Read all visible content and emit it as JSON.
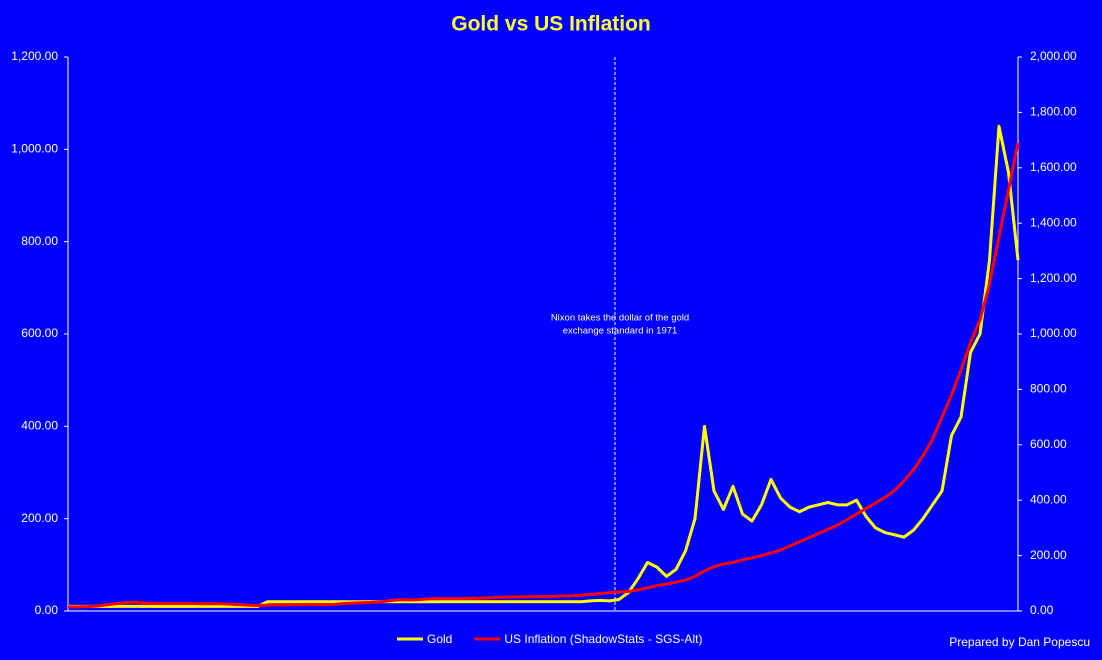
{
  "chart_data": {
    "type": "line",
    "title": "Gold vs US Inflation",
    "categories": [
      null,
      null,
      null,
      null,
      null,
      null,
      null,
      null,
      null,
      null,
      null,
      null,
      null,
      null,
      null,
      null,
      null,
      null,
      null,
      null,
      null,
      null,
      null,
      null,
      null,
      null,
      null,
      null,
      null,
      null,
      null,
      null,
      null,
      null,
      null,
      null,
      null,
      null,
      null,
      null,
      null,
      null,
      null,
      null,
      null,
      null,
      null,
      null,
      null,
      null,
      null,
      null,
      null,
      null,
      null,
      null,
      null,
      null,
      null,
      null,
      null,
      null,
      null,
      null,
      null,
      null,
      null,
      null,
      null,
      null,
      null,
      null,
      null,
      null,
      null,
      null,
      null,
      null,
      null,
      null,
      null,
      null,
      null,
      null,
      null,
      null,
      null,
      null,
      null,
      null,
      null,
      null,
      null,
      null,
      null,
      null,
      null,
      null,
      null,
      null,
      null
    ],
    "series": [
      {
        "name": "Gold",
        "color": "#ffff00",
        "values": [
          10,
          10,
          10,
          10,
          10,
          10,
          10,
          10,
          10,
          10,
          10,
          10,
          10,
          10,
          10,
          10,
          10,
          10,
          10,
          10,
          10,
          20,
          20,
          20,
          20,
          20,
          20,
          20,
          20,
          20,
          20,
          20,
          20,
          20,
          20,
          20,
          20,
          20,
          20,
          20,
          20,
          20,
          20,
          20,
          20,
          20,
          20,
          20,
          20,
          20,
          20,
          20,
          20,
          20,
          20,
          22,
          23,
          22,
          25,
          40,
          70,
          105,
          95,
          75,
          90,
          130,
          200,
          400,
          260,
          220,
          270,
          210,
          195,
          230,
          285,
          245,
          225,
          215,
          225,
          230,
          235,
          230,
          230,
          240,
          205,
          180,
          170,
          165,
          160,
          175,
          200,
          230,
          260,
          380,
          420,
          560,
          600,
          760,
          1050,
          950,
          760
        ]
      },
      {
        "name": "US Inflation (ShadowStats - SGS-Alt)",
        "color": "#ff0000",
        "axis": "y2",
        "values": [
          15,
          15,
          16,
          18,
          22,
          26,
          30,
          32,
          29,
          27,
          27,
          27,
          27,
          27,
          26,
          26,
          26,
          25,
          23,
          21,
          20,
          21,
          22,
          22,
          23,
          23,
          23,
          23,
          24,
          27,
          29,
          30,
          31,
          33,
          38,
          41,
          40,
          41,
          44,
          45,
          45,
          45,
          45,
          46,
          47,
          49,
          50,
          51,
          51,
          52,
          52,
          53,
          54,
          55,
          57,
          60,
          63,
          66,
          69,
          71,
          76,
          84,
          92,
          97,
          104,
          112,
          125,
          145,
          160,
          170,
          175,
          185,
          192,
          200,
          210,
          220,
          235,
          250,
          265,
          280,
          295,
          310,
          330,
          350,
          370,
          390,
          410,
          435,
          470,
          510,
          560,
          620,
          700,
          780,
          870,
          970,
          1050,
          1180,
          1350,
          1520,
          1690
        ]
      }
    ],
    "ylim": [
      0,
      1200
    ],
    "yticks": [
      {
        "value": 0,
        "label": "0.00"
      },
      {
        "value": 200,
        "label": "200.00"
      },
      {
        "value": 400,
        "label": "400.00"
      },
      {
        "value": 600,
        "label": "600.00"
      },
      {
        "value": 800,
        "label": "800.00"
      },
      {
        "value": 1000,
        "label": "1,000.00"
      },
      {
        "value": 1200,
        "label": "1,200.00"
      }
    ],
    "y2lim": [
      0,
      2000
    ],
    "y2ticks": [
      {
        "value": 0,
        "label": "0.00"
      },
      {
        "value": 200,
        "label": "200.00"
      },
      {
        "value": 400,
        "label": "400.00"
      },
      {
        "value": 600,
        "label": "600.00"
      },
      {
        "value": 800,
        "label": "800.00"
      },
      {
        "value": 1000,
        "label": "1,000.00"
      },
      {
        "value": 1200,
        "label": "1,200.00"
      },
      {
        "value": 1400,
        "label": "1,400.00"
      },
      {
        "value": 1600,
        "label": "1,600.00"
      },
      {
        "value": 1800,
        "label": "1,800.00"
      },
      {
        "value": 2000,
        "label": "2,000.00"
      }
    ],
    "annotation": [
      "Nixon takes the dollar of  the gold",
      "exchange standard in 1971"
    ],
    "footer": "Prepared by Dan Popescu",
    "legend": "bottom"
  }
}
